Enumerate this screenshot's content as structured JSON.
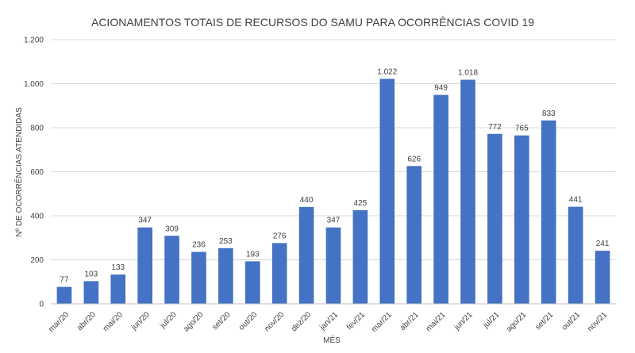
{
  "chart_data": {
    "type": "bar",
    "title": "ACIONAMENTOS TOTAIS DE RECURSOS DO SAMU PARA OCORRÊNCIAS COVID 19",
    "xlabel": "MÊS",
    "ylabel": "Nº DE OCORRÊNCIAS ATENDIDAS",
    "categories": [
      "mar/20",
      "abr/20",
      "mai/20",
      "jun/20",
      "jul/20",
      "ago/20",
      "set/20",
      "out/20",
      "nov/20",
      "dez/20",
      "jan/21",
      "fev/21",
      "mar/21",
      "abr/21",
      "mai/21",
      "jun/21",
      "jul/21",
      "ago/21",
      "set/21",
      "out/21",
      "nov/21"
    ],
    "values": [
      77,
      103,
      133,
      347,
      309,
      236,
      253,
      193,
      276,
      440,
      347,
      425,
      1022,
      626,
      949,
      1018,
      772,
      765,
      833,
      441,
      241
    ],
    "value_labels": [
      "77",
      "103",
      "133",
      "347",
      "309",
      "236",
      "253",
      "193",
      "276",
      "440",
      "347",
      "425",
      "1.022",
      "626",
      "949",
      "1.018",
      "772",
      "765",
      "833",
      "441",
      "241"
    ],
    "ylim": [
      0,
      1200
    ],
    "y_ticks": [
      0,
      200,
      400,
      600,
      800,
      1000,
      1200
    ],
    "y_tick_labels": [
      "0",
      "200",
      "400",
      "600",
      "800",
      "1.000",
      "1.200"
    ],
    "grid": true,
    "legend": "none",
    "bar_color": "#4472c4",
    "grid_color": "#d9d9d9"
  }
}
